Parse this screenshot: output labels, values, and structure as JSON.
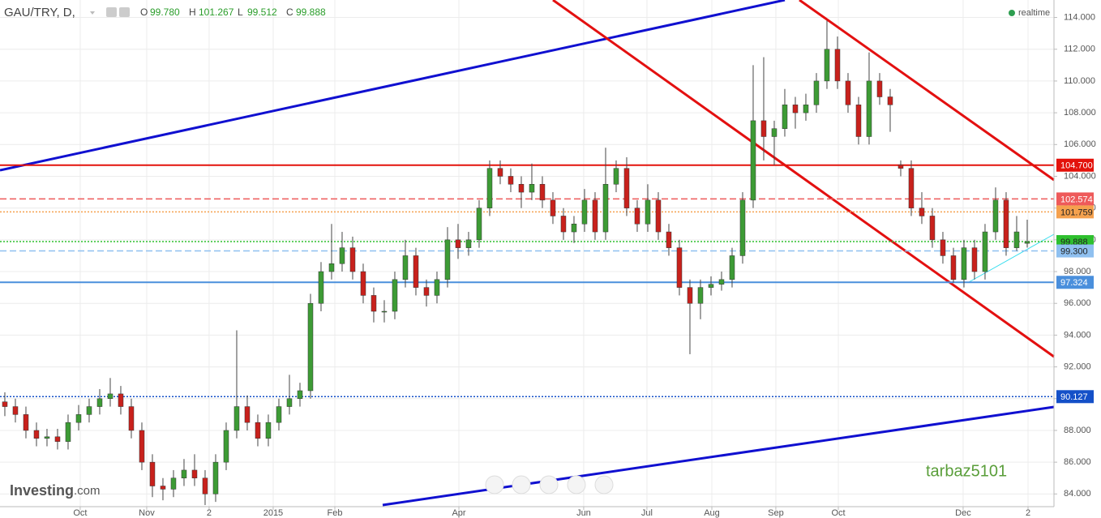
{
  "chart_data": {
    "type": "candlestick",
    "title": "GAU/TRY, D,",
    "header": [
      {
        "key": "O",
        "text": "99.780"
      },
      {
        "key": "H",
        "text": "101.267"
      },
      {
        "key": "L",
        "text": "99.512"
      },
      {
        "key": "C",
        "text": "99.888"
      }
    ],
    "status": "realtime",
    "brand": {
      "name": "Investing",
      "suffix": ".com"
    },
    "watermark": "tarbaz5101",
    "up_color": "#3d9b35",
    "down_color": "#c8211c",
    "xlim": [
      -0.46,
      99.54
    ],
    "xticks": [
      {
        "value": 7.15,
        "label": "Oct"
      },
      {
        "value": 13.46,
        "label": "Nov"
      },
      {
        "value": 19.38,
        "label": "2"
      },
      {
        "value": 25.46,
        "label": "2015"
      },
      {
        "value": 31.31,
        "label": "Feb"
      },
      {
        "value": 43.08,
        "label": "Apr"
      },
      {
        "value": 54.92,
        "label": "Jun"
      },
      {
        "value": 60.92,
        "label": "Jul"
      },
      {
        "value": 67.08,
        "label": "Aug"
      },
      {
        "value": 73.15,
        "label": "Sep"
      },
      {
        "value": 79.08,
        "label": "Oct"
      },
      {
        "value": 90.92,
        "label": "Dec"
      },
      {
        "value": 97.08,
        "label": "2"
      }
    ],
    "ylim": [
      83.2,
      115.1
    ],
    "yticks": [
      {
        "value": 84,
        "label": "84.000"
      },
      {
        "value": 86,
        "label": "86.000"
      },
      {
        "value": 88,
        "label": "88.000"
      },
      {
        "value": 90,
        "label": "90.000"
      },
      {
        "value": 92,
        "label": "92.000"
      },
      {
        "value": 94,
        "label": "94.000"
      },
      {
        "value": 96,
        "label": "96.000"
      },
      {
        "value": 98,
        "label": "98.000"
      },
      {
        "value": 100,
        "label": "100.000"
      },
      {
        "value": 102,
        "label": "102.000"
      },
      {
        "value": 104,
        "label": "104.000"
      },
      {
        "value": 106,
        "label": "106.000"
      },
      {
        "value": 108,
        "label": "108.000"
      },
      {
        "value": 110,
        "label": "110.000"
      },
      {
        "value": 112,
        "label": "112.000"
      },
      {
        "value": 114,
        "label": "114.000"
      }
    ],
    "grid": true,
    "open": [
      89.8,
      89.5,
      89.0,
      88.0,
      87.5,
      87.6,
      87.3,
      88.5,
      89.0,
      89.5,
      90.0,
      90.3,
      89.5,
      88.0,
      86.0,
      84.5,
      84.3,
      85.0,
      85.5,
      85.0,
      84.0,
      86.0,
      88.0,
      89.5,
      88.5,
      87.5,
      88.5,
      89.5,
      90.0,
      90.5,
      96.0,
      98.0,
      98.5,
      99.5,
      98.0,
      96.5,
      95.5,
      95.5,
      97.5,
      99.0,
      97.0,
      96.5,
      97.5,
      100.0,
      99.5,
      100.0,
      102.0,
      104.5,
      104.0,
      103.5,
      103.0,
      103.5,
      102.5,
      101.5,
      100.5,
      101.0,
      102.5,
      100.5,
      103.5,
      104.5,
      102.0,
      101.0,
      102.5,
      100.5,
      99.5,
      97.0,
      96.0,
      97.0,
      97.2,
      97.5,
      99.0,
      102.5,
      107.5,
      106.5,
      107.0,
      108.5,
      108.0,
      108.5,
      110.0,
      112.0,
      110.0,
      108.5,
      106.5,
      110.0,
      109.0,
      104.7,
      104.5,
      102.0,
      101.5,
      100.0,
      99.0,
      97.5,
      99.5,
      98.0,
      100.5,
      102.5,
      99.5,
      99.78
    ],
    "high": [
      90.4,
      90.0,
      89.5,
      88.5,
      88.1,
      88.1,
      89.0,
      89.6,
      90.0,
      90.6,
      91.3,
      90.8,
      90.0,
      88.5,
      86.5,
      85.0,
      85.5,
      86.2,
      86.5,
      85.5,
      86.5,
      88.5,
      94.3,
      90.2,
      89.0,
      89.0,
      90.0,
      91.5,
      91.0,
      96.6,
      98.6,
      101.0,
      100.5,
      100.2,
      98.5,
      97.0,
      96.2,
      98.0,
      100.0,
      99.5,
      97.5,
      98.0,
      100.8,
      101.0,
      100.5,
      102.5,
      105.0,
      105.0,
      104.5,
      104.0,
      104.8,
      104.0,
      103.0,
      102.0,
      101.5,
      103.2,
      103.0,
      105.8,
      105.0,
      105.2,
      102.5,
      103.5,
      103.0,
      101.0,
      100.0,
      97.5,
      97.5,
      97.7,
      98.0,
      99.5,
      103.0,
      111.0,
      111.5,
      107.5,
      109.5,
      109.0,
      109.2,
      110.5,
      113.8,
      112.8,
      110.5,
      109.0,
      111.8,
      110.5,
      109.5,
      105.0,
      105.0,
      103.0,
      102.0,
      100.5,
      99.5,
      100.0,
      100.0,
      101.0,
      103.3,
      103.0,
      101.5,
      101.267
    ],
    "low": [
      88.9,
      88.5,
      87.5,
      87.0,
      87.0,
      86.8,
      86.8,
      88.0,
      88.5,
      89.0,
      89.5,
      89.0,
      87.5,
      85.5,
      83.8,
      83.6,
      83.8,
      84.5,
      84.5,
      83.3,
      83.5,
      85.5,
      87.5,
      88.0,
      87.0,
      87.0,
      88.0,
      89.0,
      89.5,
      90.0,
      95.5,
      97.5,
      98.0,
      97.5,
      96.0,
      94.8,
      94.8,
      95.0,
      97.0,
      96.5,
      95.8,
      96.0,
      97.0,
      98.8,
      99.0,
      99.5,
      101.5,
      103.5,
      103.0,
      102.0,
      102.5,
      102.0,
      101.0,
      100.0,
      99.8,
      100.5,
      100.0,
      100.0,
      103.0,
      101.5,
      100.5,
      100.5,
      100.0,
      99.0,
      96.5,
      92.8,
      95.0,
      96.5,
      96.8,
      97.0,
      98.5,
      102.0,
      105.0,
      104.7,
      106.5,
      107.0,
      107.5,
      108.0,
      109.5,
      109.5,
      108.0,
      106.0,
      106.0,
      108.5,
      106.8,
      104.0,
      101.5,
      101.0,
      99.5,
      98.5,
      97.3,
      97.0,
      97.5,
      97.5,
      100.0,
      99.0,
      99.3,
      99.512
    ],
    "close": [
      89.5,
      89.0,
      88.0,
      87.5,
      87.6,
      87.3,
      88.5,
      89.0,
      89.5,
      90.0,
      90.3,
      89.5,
      88.0,
      86.0,
      84.5,
      84.3,
      85.0,
      85.5,
      85.0,
      84.0,
      86.0,
      88.0,
      89.5,
      88.5,
      87.5,
      88.5,
      89.5,
      90.0,
      90.5,
      96.0,
      98.0,
      98.5,
      99.5,
      98.0,
      96.5,
      95.5,
      95.5,
      97.5,
      99.0,
      97.0,
      96.5,
      97.5,
      100.0,
      99.5,
      100.0,
      102.0,
      104.5,
      104.0,
      103.5,
      103.0,
      103.5,
      102.5,
      101.5,
      100.5,
      101.0,
      102.5,
      100.5,
      103.5,
      104.5,
      102.0,
      101.0,
      102.5,
      100.5,
      99.5,
      97.0,
      96.0,
      97.0,
      97.2,
      97.5,
      99.0,
      102.5,
      107.5,
      106.5,
      107.0,
      108.5,
      108.0,
      108.5,
      110.0,
      112.0,
      110.0,
      108.5,
      106.5,
      110.0,
      109.0,
      108.5,
      104.5,
      102.0,
      101.5,
      100.0,
      99.0,
      97.5,
      99.5,
      98.0,
      100.5,
      102.5,
      99.5,
      100.5,
      99.888
    ],
    "levels": [
      {
        "value": 104.7,
        "label": "104.700",
        "color": "#e3120b",
        "dash": "solid",
        "text_color": "#ffffff"
      },
      {
        "value": 102.574,
        "label": "102.574",
        "color": "#ee5a5a",
        "dash": "dashed",
        "text_color": "#ffffff"
      },
      {
        "value": 101.759,
        "label": "101.759",
        "color": "#f5a14e",
        "dash": "dotted",
        "text_color": "#222222"
      },
      {
        "value": 99.888,
        "label": "99.888",
        "color": "#2ec02e",
        "dash": "dotted",
        "text_color": "#222222"
      },
      {
        "value": 99.3,
        "label": "99.300",
        "color": "#8fc0f0",
        "dash": "dashed",
        "text_color": "#222222"
      },
      {
        "value": 97.324,
        "label": "97.324",
        "color": "#4a8fdc",
        "dash": "solid",
        "text_color": "#ffffff"
      },
      {
        "value": 90.127,
        "label": "90.127",
        "color": "#1450c8",
        "dash": "dotted",
        "text_color": "#ffffff"
      }
    ]
  }
}
